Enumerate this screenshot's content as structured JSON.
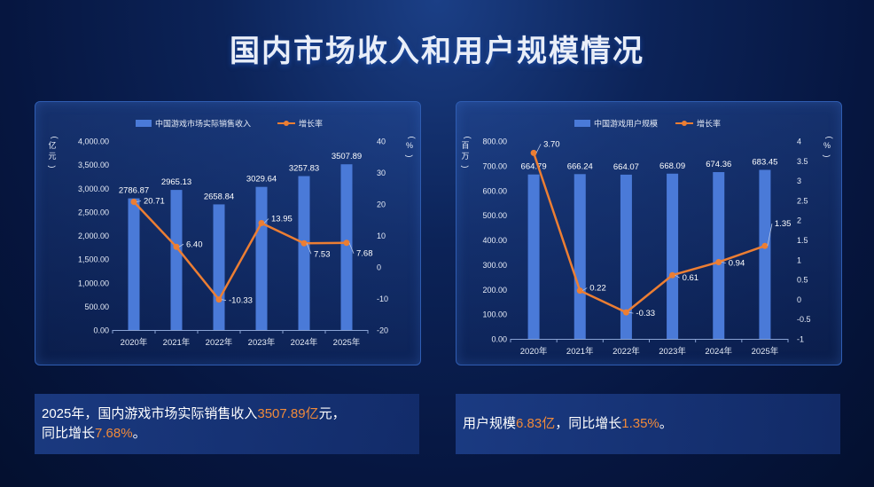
{
  "title": "国内市场收入和用户规模情况",
  "colors": {
    "bar": "#4a7ad8",
    "line": "#ec7e33",
    "axis_text": "#e6ecf7"
  },
  "chart_data": [
    {
      "type": "bar+line",
      "legend_position": "top-center",
      "categories": [
        "2020年",
        "2021年",
        "2022年",
        "2023年",
        "2024年",
        "2025年"
      ],
      "bar_series": {
        "name": "中国游戏市场实际销售收入",
        "values": [
          2786.87,
          2965.13,
          2658.84,
          3029.64,
          3257.83,
          3507.89
        ],
        "labels": [
          "2786.87",
          "2965.13",
          "2658.84",
          "3029.64",
          "3257.83",
          "3507.89"
        ]
      },
      "line_series": {
        "name": "增长率",
        "values": [
          20.71,
          6.4,
          -10.33,
          13.95,
          7.53,
          7.68
        ],
        "labels": [
          "20.71",
          "6.40",
          "-10.33",
          "13.95",
          "7.53",
          "7.68"
        ]
      },
      "ylabel_left": "（亿元）",
      "ylabel_right": "（%）",
      "ylim_left": [
        0,
        4000
      ],
      "yticks_left": [
        "0.00",
        "500.00",
        "1,000.00",
        "1,500.00",
        "2,000.00",
        "2,500.00",
        "3,000.00",
        "3,500.00",
        "4,000.00"
      ],
      "ylim_right": [
        -20,
        40
      ],
      "yticks_right": [
        "-20",
        "-10",
        "0",
        "10",
        "20",
        "30",
        "40"
      ],
      "grid": false
    },
    {
      "type": "bar+line",
      "legend_position": "top-center",
      "categories": [
        "2020年",
        "2021年",
        "2022年",
        "2023年",
        "2024年",
        "2025年"
      ],
      "bar_series": {
        "name": "中国游戏用户规模",
        "values": [
          664.79,
          666.24,
          664.07,
          668.09,
          674.36,
          683.45
        ],
        "labels": [
          "664.79",
          "666.24",
          "664.07",
          "668.09",
          "674.36",
          "683.45"
        ]
      },
      "line_series": {
        "name": "增长率",
        "values": [
          3.7,
          0.22,
          -0.33,
          0.61,
          0.94,
          1.35
        ],
        "labels": [
          "3.70",
          "0.22",
          "-0.33",
          "0.61",
          "0.94",
          "1.35"
        ]
      },
      "ylabel_left": "（百万）",
      "ylabel_right": "（%）",
      "ylim_left": [
        0,
        800
      ],
      "yticks_left": [
        "0.00",
        "100.00",
        "200.00",
        "300.00",
        "400.00",
        "500.00",
        "600.00",
        "700.00",
        "800.00"
      ],
      "ylim_right": [
        -1,
        4
      ],
      "yticks_right": [
        "-1",
        "-0.5",
        "0",
        "0.5",
        "1",
        "1.5",
        "2",
        "2.5",
        "3",
        "3.5",
        "4"
      ],
      "grid": false
    }
  ],
  "captions": {
    "left": {
      "p1": "2025年，国内游戏市场实际销售收入",
      "v1": "3507.89亿",
      "p2": "元，",
      "p3": "同比增长",
      "v2": "7.68%",
      "p4": "。"
    },
    "right": {
      "p1": "用户规模",
      "v1": "6.83亿",
      "p2": "，同比增长",
      "v2": "1.35%",
      "p3": "。"
    }
  }
}
